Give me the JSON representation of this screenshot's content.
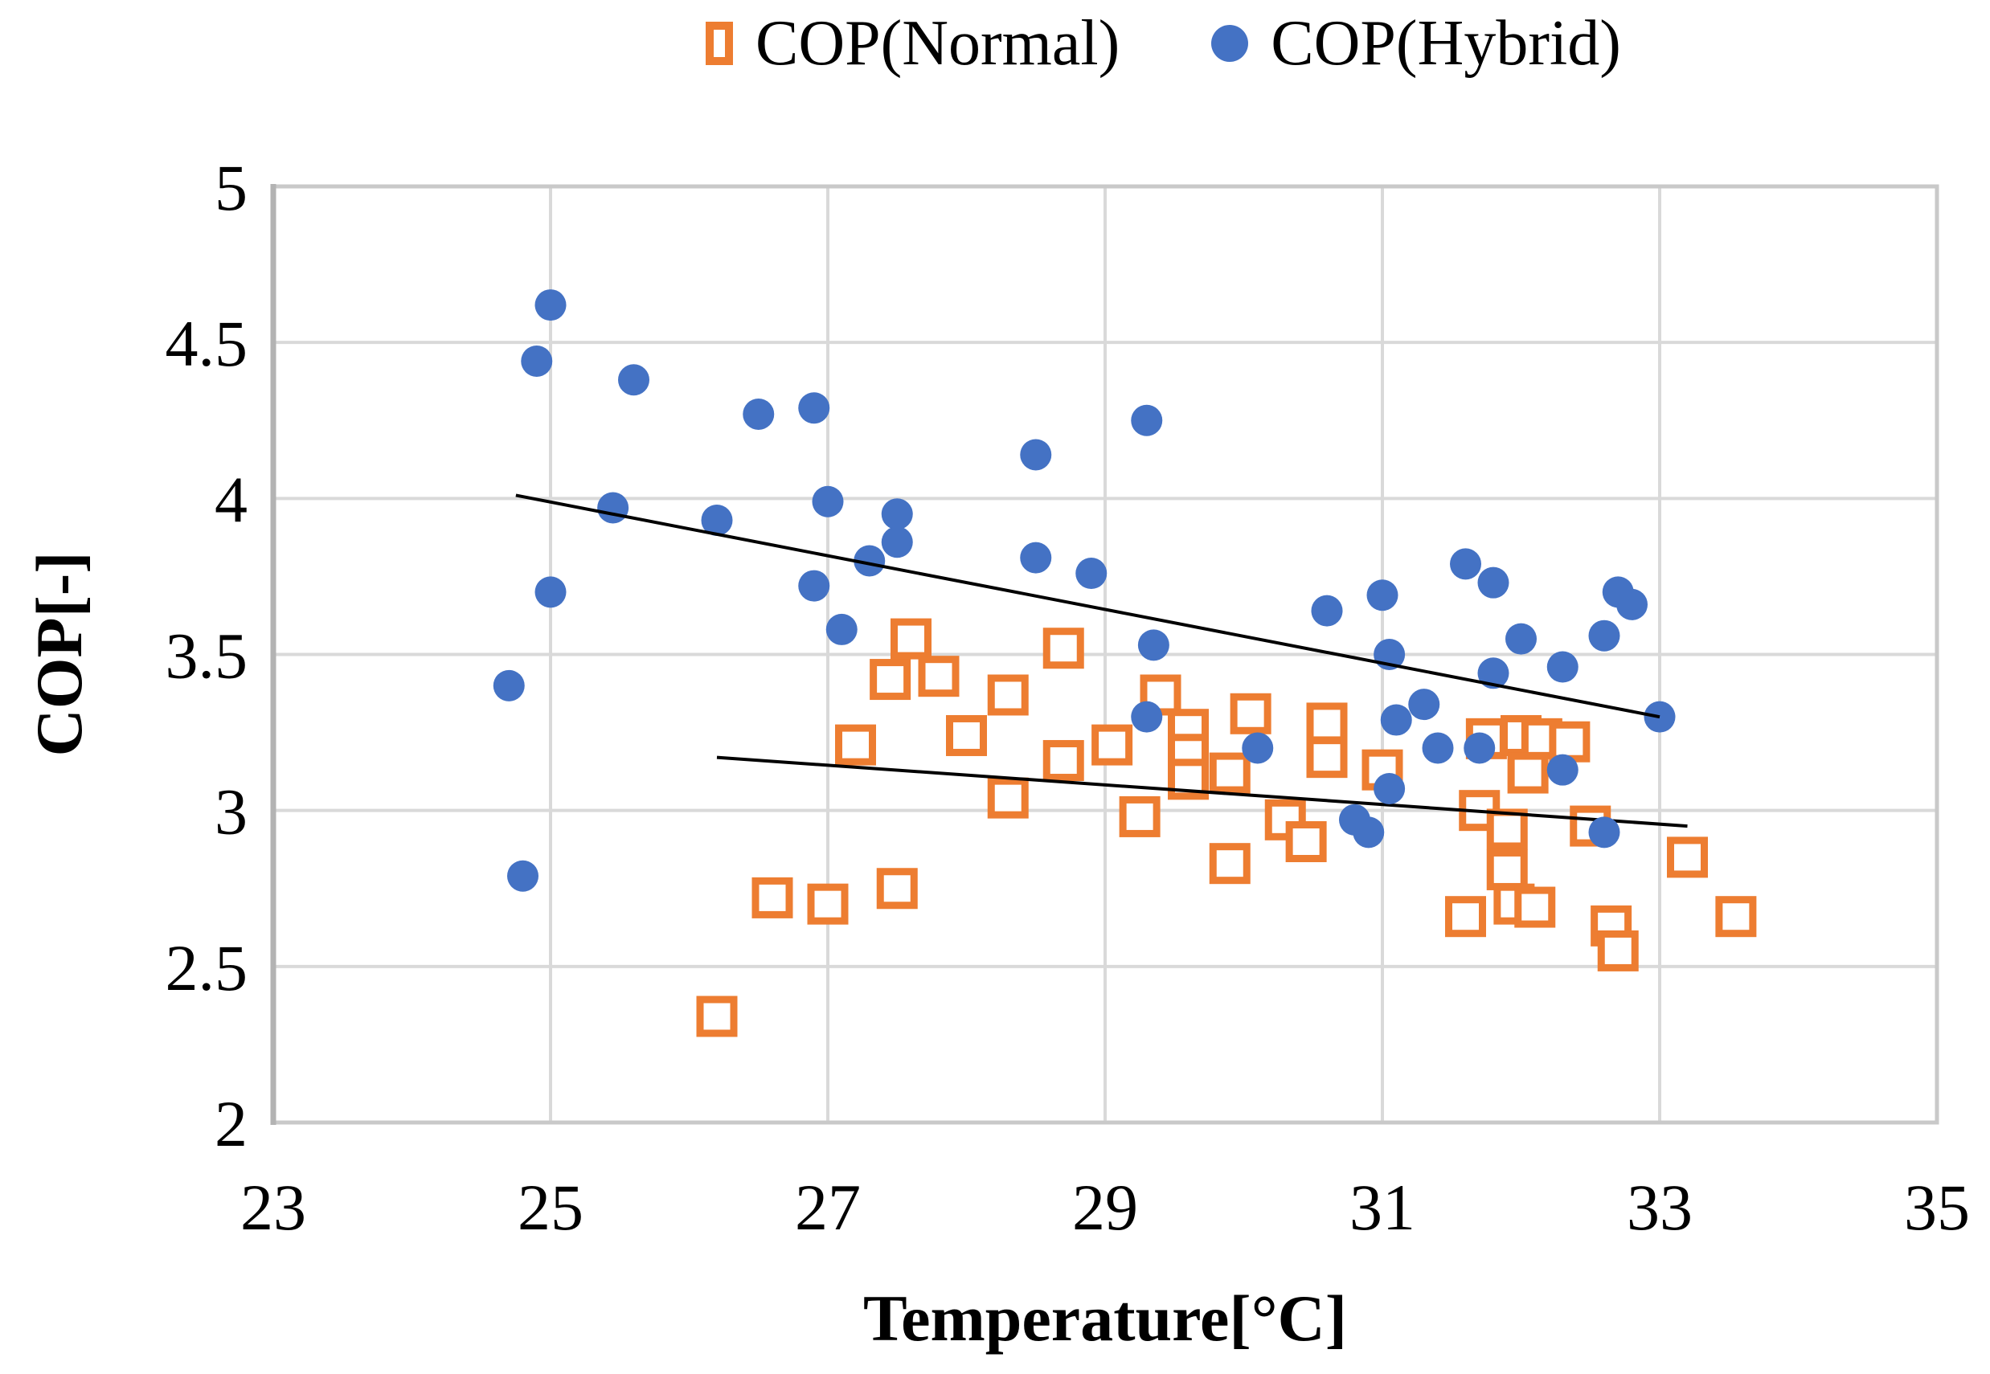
{
  "chart_data": {
    "type": "scatter",
    "title": "",
    "xlabel": "Temperature[°C]",
    "ylabel": "COP[-]",
    "xlim": [
      23,
      35
    ],
    "ylim": [
      2,
      5
    ],
    "xticks": [
      23,
      25,
      27,
      29,
      31,
      33,
      35
    ],
    "yticks": [
      2,
      2.5,
      3,
      3.5,
      4,
      4.5,
      5
    ],
    "grid": true,
    "legend_position": "top-center",
    "colors": {
      "normal": "#ED7D31",
      "hybrid": "#4472C4",
      "gridline": "#D9D9D9",
      "plot_border": "#C9C9C9",
      "axis_line": "#B3B3B3",
      "trendline": "#000000"
    },
    "series": [
      {
        "name": "COP(Normal)",
        "marker": "square",
        "color": "#ED7D31",
        "points": [
          [
            27.6,
            3.55
          ],
          [
            28.7,
            3.52
          ],
          [
            27.45,
            3.42
          ],
          [
            27.8,
            3.43
          ],
          [
            28.3,
            3.37
          ],
          [
            28.0,
            3.24
          ],
          [
            27.2,
            3.21
          ],
          [
            28.7,
            3.16
          ],
          [
            29.05,
            3.21
          ],
          [
            28.3,
            3.04
          ],
          [
            29.4,
            3.37
          ],
          [
            29.6,
            3.26
          ],
          [
            29.6,
            3.18
          ],
          [
            29.6,
            3.1
          ],
          [
            29.9,
            3.12
          ],
          [
            30.05,
            3.31
          ],
          [
            30.6,
            3.28
          ],
          [
            30.6,
            3.17
          ],
          [
            29.25,
            2.98
          ],
          [
            29.9,
            2.83
          ],
          [
            30.3,
            2.97
          ],
          [
            30.45,
            2.9
          ],
          [
            27.5,
            2.75
          ],
          [
            27.0,
            2.7
          ],
          [
            26.6,
            2.72
          ],
          [
            26.2,
            2.34
          ],
          [
            31.0,
            3.13
          ],
          [
            31.75,
            3.23
          ],
          [
            32.0,
            3.24
          ],
          [
            32.15,
            3.23
          ],
          [
            32.35,
            3.22
          ],
          [
            32.05,
            3.12
          ],
          [
            31.7,
            3.0
          ],
          [
            31.9,
            2.94
          ],
          [
            31.9,
            2.81
          ],
          [
            31.95,
            2.7
          ],
          [
            32.1,
            2.69
          ],
          [
            31.6,
            2.66
          ],
          [
            32.5,
            2.95
          ],
          [
            33.2,
            2.85
          ],
          [
            32.65,
            2.63
          ],
          [
            32.7,
            2.55
          ],
          [
            33.55,
            2.66
          ]
        ]
      },
      {
        "name": "COP(Hybrid)",
        "marker": "circle",
        "color": "#4472C4",
        "points": [
          [
            25.0,
            4.62
          ],
          [
            24.9,
            4.44
          ],
          [
            25.6,
            4.38
          ],
          [
            26.5,
            4.27
          ],
          [
            26.9,
            4.29
          ],
          [
            25.45,
            3.97
          ],
          [
            26.2,
            3.93
          ],
          [
            25.0,
            3.7
          ],
          [
            26.9,
            3.72
          ],
          [
            27.0,
            3.99
          ],
          [
            27.5,
            3.95
          ],
          [
            27.5,
            3.86
          ],
          [
            27.3,
            3.8
          ],
          [
            28.5,
            4.14
          ],
          [
            29.3,
            4.25
          ],
          [
            28.5,
            3.81
          ],
          [
            28.9,
            3.76
          ],
          [
            29.35,
            3.53
          ],
          [
            27.1,
            3.58
          ],
          [
            30.6,
            3.64
          ],
          [
            24.7,
            3.4
          ],
          [
            24.8,
            2.79
          ],
          [
            31.05,
            3.5
          ],
          [
            31.6,
            3.79
          ],
          [
            31.8,
            3.73
          ],
          [
            31.0,
            3.69
          ],
          [
            32.7,
            3.7
          ],
          [
            32.8,
            3.66
          ],
          [
            32.6,
            3.56
          ],
          [
            31.1,
            3.29
          ],
          [
            31.3,
            3.34
          ],
          [
            31.4,
            3.2
          ],
          [
            31.7,
            3.2
          ],
          [
            31.05,
            3.07
          ],
          [
            32.3,
            3.13
          ],
          [
            32.6,
            2.93
          ],
          [
            31.8,
            3.44
          ],
          [
            32.0,
            3.55
          ],
          [
            32.3,
            3.46
          ],
          [
            33.0,
            3.3
          ],
          [
            29.3,
            3.3
          ],
          [
            30.1,
            3.2
          ],
          [
            30.8,
            2.97
          ],
          [
            30.9,
            2.93
          ]
        ]
      }
    ],
    "trendlines": [
      {
        "series": "COP(Normal)",
        "color": "#000000",
        "from": [
          26.2,
          3.17
        ],
        "to": [
          33.2,
          2.95
        ]
      },
      {
        "series": "COP(Hybrid)",
        "color": "#000000",
        "from": [
          24.75,
          4.01
        ],
        "to": [
          33.0,
          3.3
        ]
      }
    ]
  }
}
